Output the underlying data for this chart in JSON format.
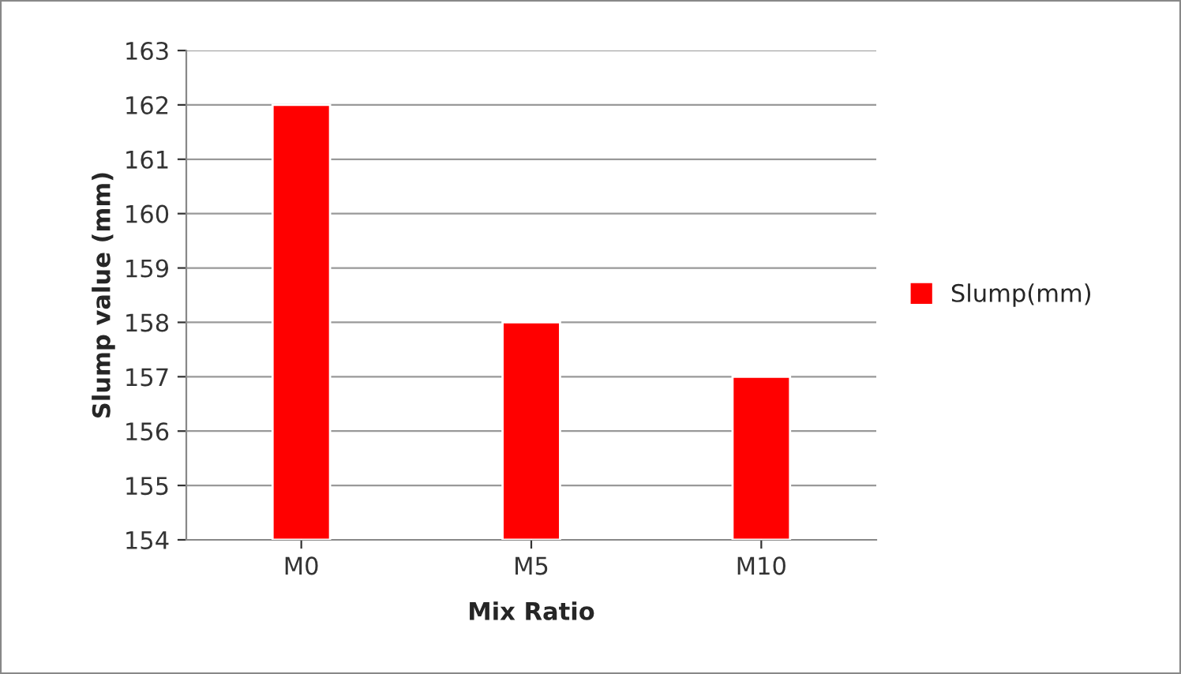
{
  "chart_data": {
    "type": "bar",
    "xlabel": "Mix Ratio",
    "ylabel": "Slump value (mm)",
    "categories": [
      "M0",
      "M5",
      "M10"
    ],
    "series": [
      {
        "name": "Slump(mm)",
        "color": "#ff0000",
        "values": [
          162,
          158,
          157
        ]
      }
    ],
    "ylim": [
      154,
      163
    ],
    "yticks": [
      154,
      155,
      156,
      157,
      158,
      159,
      160,
      161,
      162,
      163
    ],
    "grid": "y",
    "legend": "right"
  }
}
